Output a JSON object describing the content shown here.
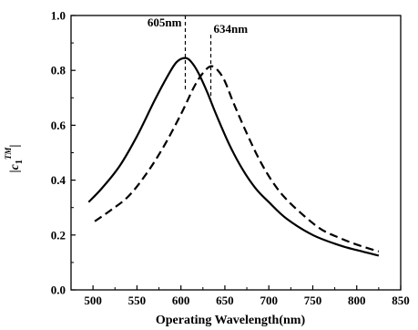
{
  "chart_data": {
    "type": "line",
    "title": "",
    "xlabel": "Operating Wavelength(nm)",
    "ylabel": {
      "bar_left": "|",
      "base": "c",
      "subscript": "1",
      "superscript": "TM",
      "bar_right": "|"
    },
    "xlim": [
      475,
      850
    ],
    "ylim": [
      0.0,
      1.0
    ],
    "x_ticks": [
      "500",
      "550",
      "600",
      "650",
      "700",
      "750",
      "800",
      "850"
    ],
    "y_ticks": [
      "0.0",
      "0.2",
      "0.4",
      "0.6",
      "0.8",
      "1.0"
    ],
    "grid": false,
    "legend": "none",
    "series": [
      {
        "style": "solid",
        "color": "#000000",
        "x": [
          495,
          510,
          530,
          550,
          570,
          585,
          595,
          605,
          612,
          620,
          630,
          640,
          655,
          670,
          685,
          700,
          720,
          750,
          780,
          800,
          825
        ],
        "y": [
          0.32,
          0.37,
          0.45,
          0.56,
          0.69,
          0.78,
          0.83,
          0.845,
          0.83,
          0.79,
          0.72,
          0.64,
          0.53,
          0.44,
          0.37,
          0.32,
          0.26,
          0.2,
          0.163,
          0.145,
          0.125
        ]
      },
      {
        "style": "dashed",
        "color": "#000000",
        "x": [
          502,
          520,
          540,
          560,
          580,
          600,
          615,
          625,
          634,
          642,
          650,
          660,
          675,
          690,
          705,
          720,
          740,
          760,
          780,
          800,
          825
        ],
        "y": [
          0.25,
          0.29,
          0.34,
          0.42,
          0.52,
          0.64,
          0.74,
          0.79,
          0.815,
          0.8,
          0.76,
          0.68,
          0.57,
          0.47,
          0.39,
          0.33,
          0.27,
          0.22,
          0.19,
          0.165,
          0.14
        ]
      }
    ],
    "annotations": [
      {
        "text": "605nm",
        "x": 605,
        "y": 0.845,
        "line_top": 1.0
      },
      {
        "text": "634nm",
        "x": 634,
        "y": 0.815,
        "line_top": 0.93
      }
    ]
  }
}
